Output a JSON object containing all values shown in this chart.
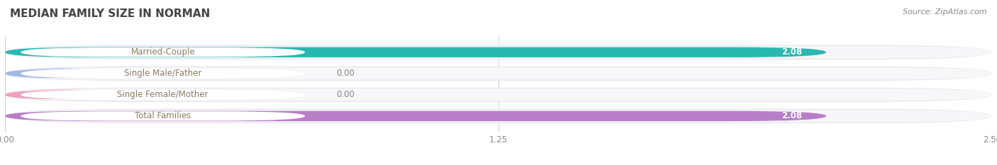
{
  "title": "MEDIAN FAMILY SIZE IN NORMAN",
  "source": "Source: ZipAtlas.com",
  "categories": [
    "Married-Couple",
    "Single Male/Father",
    "Single Female/Mother",
    "Total Families"
  ],
  "values": [
    2.08,
    0.0,
    0.0,
    2.08
  ],
  "bar_colors": [
    "#29b8b0",
    "#a0b8e8",
    "#f0a0b8",
    "#b87ec8"
  ],
  "xlim": [
    0,
    2.5
  ],
  "xticks": [
    0.0,
    1.25,
    2.5
  ],
  "title_fontsize": 11,
  "label_fontsize": 8.5,
  "value_fontsize": 8.5,
  "source_fontsize": 8,
  "background_color": "#ffffff",
  "row_bg_color": "#e8e8ec",
  "row_inner_color": "#f7f7fa"
}
